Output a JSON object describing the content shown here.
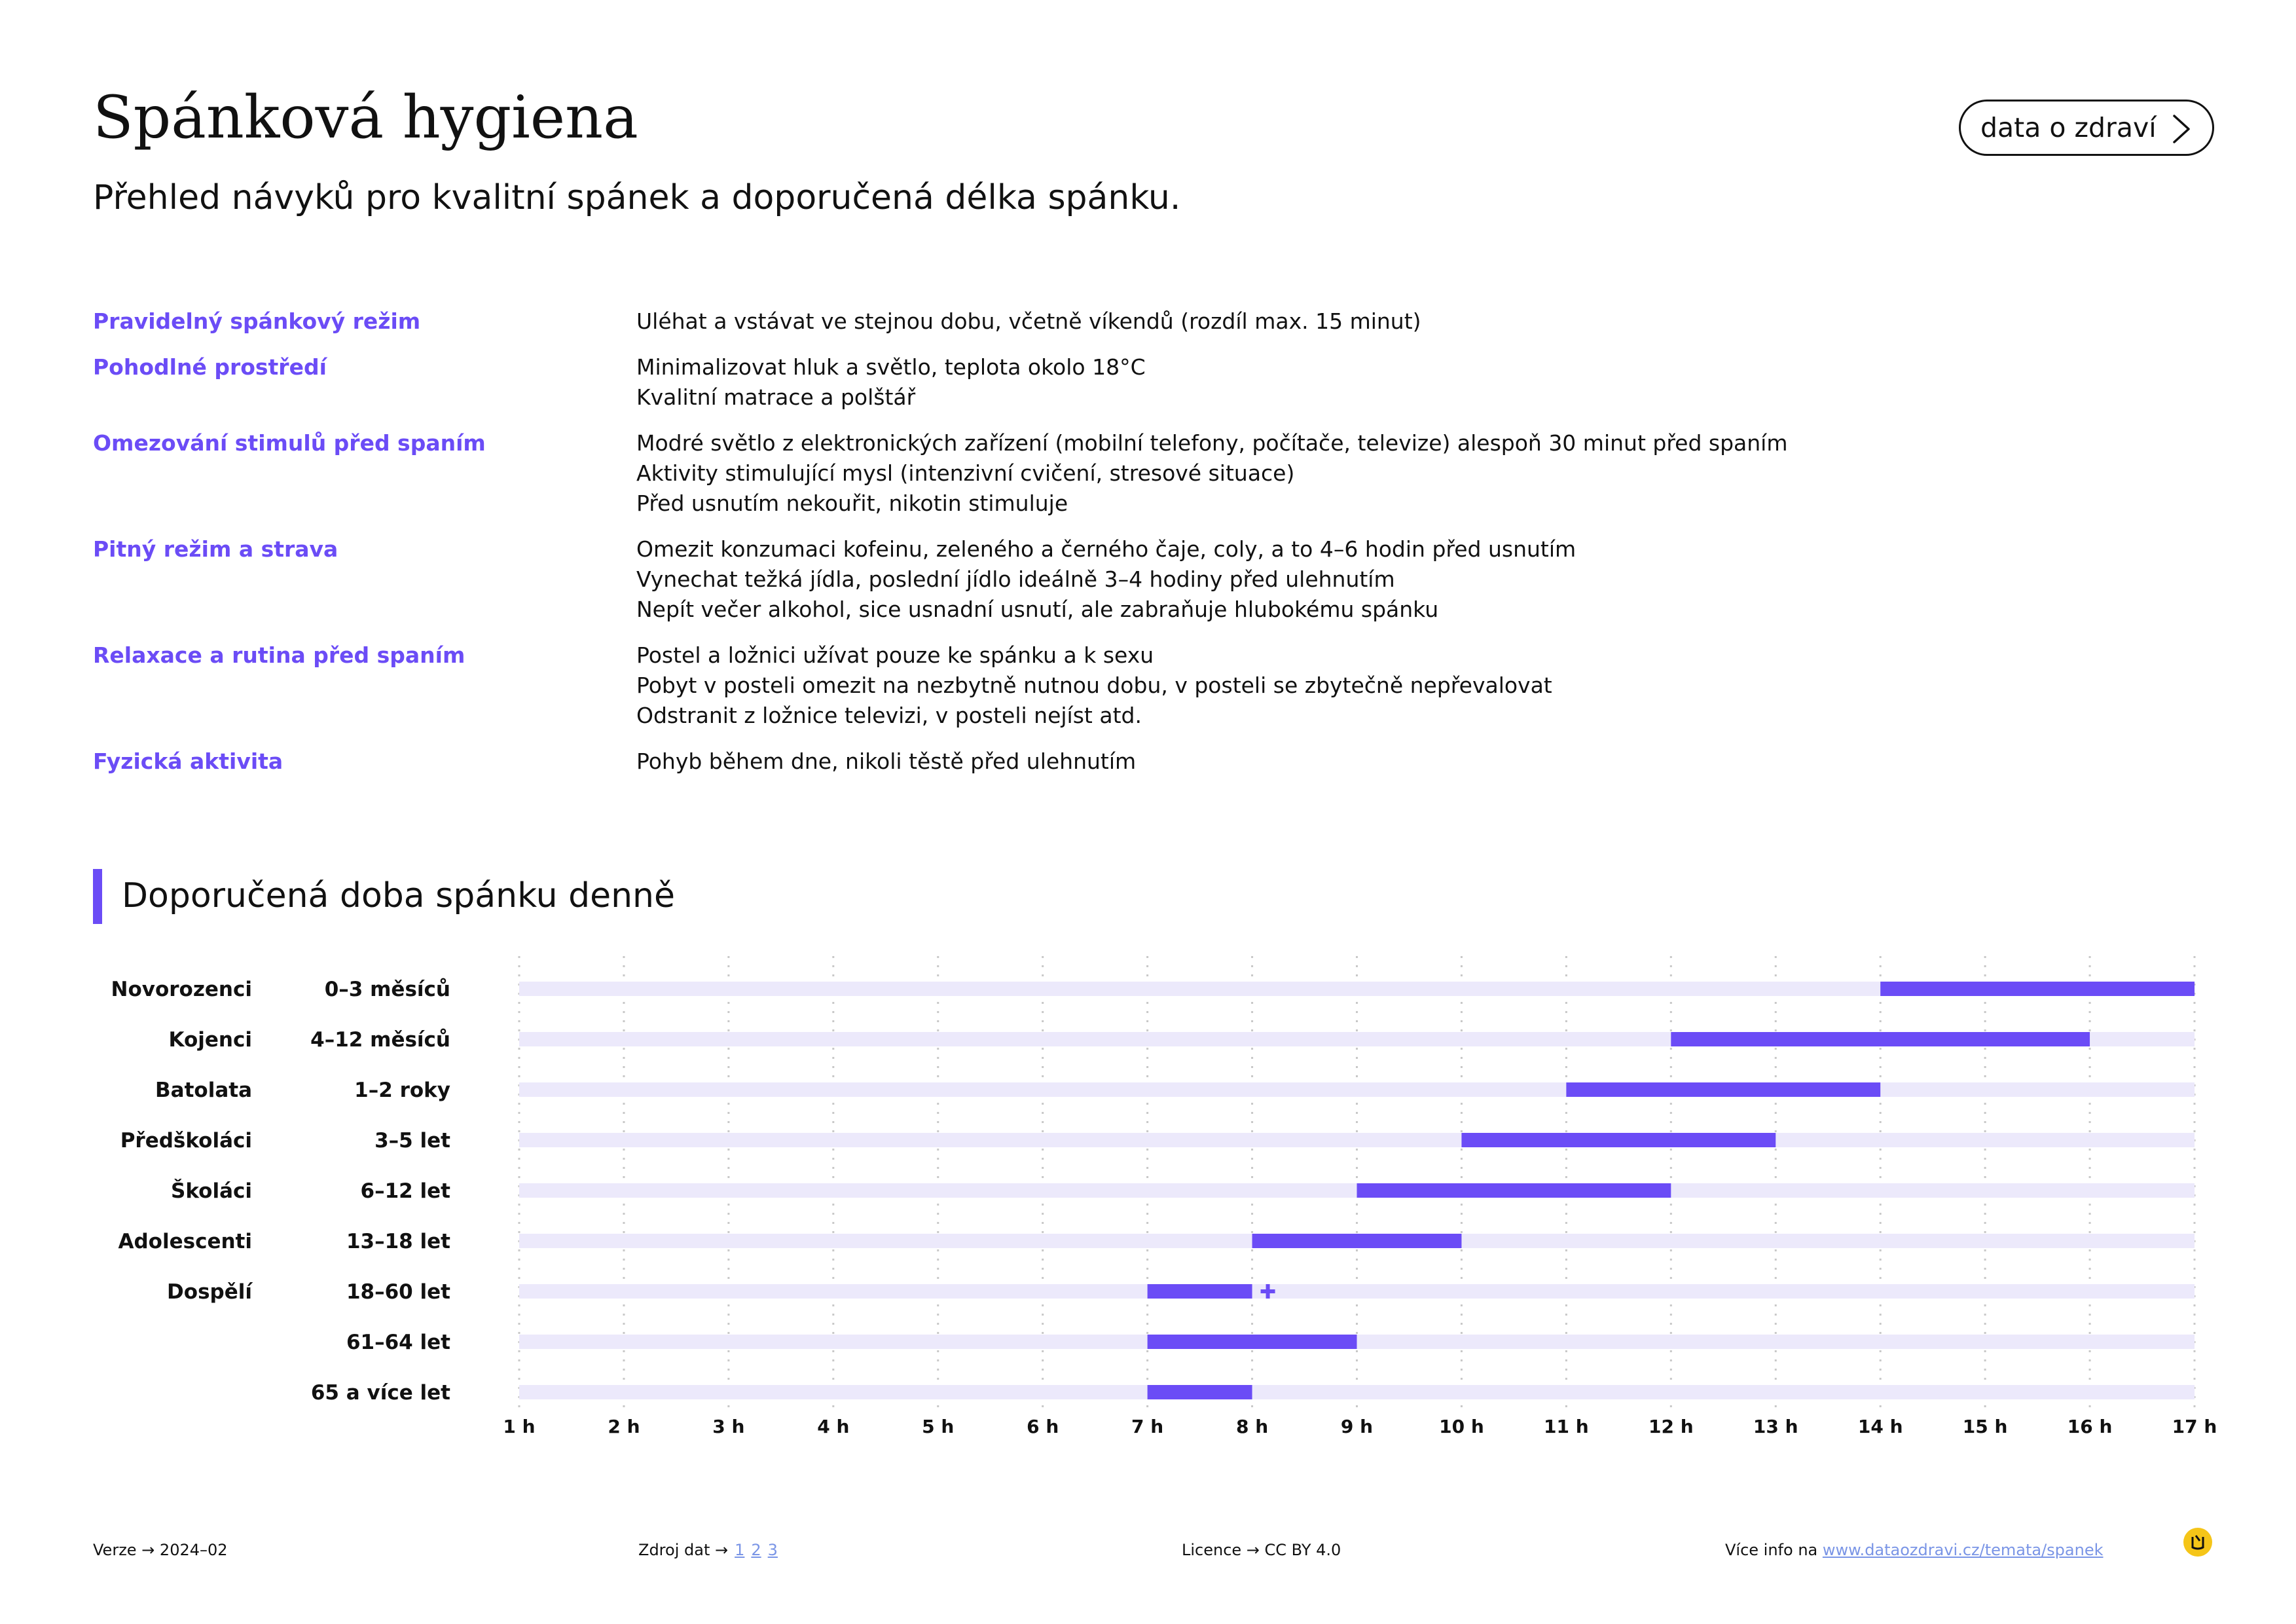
{
  "header": {
    "title": "Spánková hygiena",
    "subtitle": "Přehled návyků pro kvalitní spánek a doporučená délka spánku.",
    "pill_label": "data o zdraví"
  },
  "tips": [
    {
      "category": "Pravidelný spánkový režim",
      "items": [
        "Uléhat a vstávat ve stejnou dobu, včetně víkendů (rozdíl max. 15 minut)"
      ]
    },
    {
      "category": "Pohodlné prostředí",
      "items": [
        "Minimalizovat hluk a světlo, teplota okolo 18°C",
        "Kvalitní matrace a polštář"
      ]
    },
    {
      "category": "Omezování stimulů před spaním",
      "items": [
        "Modré světlo z elektronických zařízení (mobilní telefony, počítače, televize) alespoň 30 minut před spaním",
        "Aktivity stimulující mysl (intenzivní cvičení, stresové situace)",
        "Před usnutím nekouřit, nikotin stimuluje"
      ]
    },
    {
      "category": "Pitný režim a strava",
      "items": [
        "Omezit konzumaci kofeinu, zeleného a černého čaje, coly, a to 4–6 hodin před usnutím",
        "Vynechat težká jídla, poslední jídlo ideálně 3–4 hodiny před ulehnutím",
        "Nepít večer alkohol, sice usnadní usnutí, ale zabraňuje hlubokému spánku"
      ]
    },
    {
      "category": "Relaxace a rutina před spaním",
      "items": [
        "Postel a ložnici užívat pouze ke spánku a k sexu",
        "Pobyt v posteli omezit na nezbytně nutnou dobu, v posteli se zbytečně nepřevalovat",
        "Odstranit z ložnice televizi, v posteli nejíst atd."
      ]
    },
    {
      "category": "Fyzická aktivita",
      "items": [
        "Pohyb během dne, nikoli těstě před ulehnutím"
      ]
    }
  ],
  "section": {
    "title": "Doporučená doba spánku denně"
  },
  "chart_data": {
    "type": "bar",
    "orientation": "horizontal-range",
    "x_ticks": [
      "1 h",
      "2 h",
      "3 h",
      "4 h",
      "5 h",
      "6 h",
      "7 h",
      "8 h",
      "9 h",
      "10 h",
      "11 h",
      "12 h",
      "13 h",
      "14 h",
      "15 h",
      "16 h",
      "17 h"
    ],
    "xlim": [
      1,
      17
    ],
    "grid": true,
    "rows": [
      {
        "group": "Novorozenci",
        "age": "0–3 měsíců",
        "min": 14,
        "max": 17
      },
      {
        "group": "Kojenci",
        "age": "4–12 měsíců",
        "min": 12,
        "max": 16
      },
      {
        "group": "Batolata",
        "age": "1–2 roky",
        "min": 11,
        "max": 14
      },
      {
        "group": "Předškoláci",
        "age": "3–5 let",
        "min": 10,
        "max": 13
      },
      {
        "group": "Školáci",
        "age": "6–12 let",
        "min": 9,
        "max": 12
      },
      {
        "group": "Adolescenti",
        "age": "13–18 let",
        "min": 8,
        "max": 10
      },
      {
        "group": "Dospělí",
        "age": "18–60 let",
        "min": 7,
        "max": 8,
        "plus": true
      },
      {
        "group": "",
        "age": "61–64 let",
        "min": 7,
        "max": 9
      },
      {
        "group": "",
        "age": "65 a více let",
        "min": 7,
        "max": 8
      }
    ],
    "colors": {
      "range": "#6b4cf6",
      "track": "#ece9fb",
      "grid": "#c8c8c8"
    }
  },
  "footer": {
    "version": "Verze  →  2024–02",
    "source_label": "Zdroj dat  →",
    "source_links": [
      "1",
      "2",
      "3"
    ],
    "license": "Licence  →  CC BY 4.0",
    "more_prefix": "Více info na ",
    "more_link": "www.dataozdravi.cz/temata/spanek"
  }
}
